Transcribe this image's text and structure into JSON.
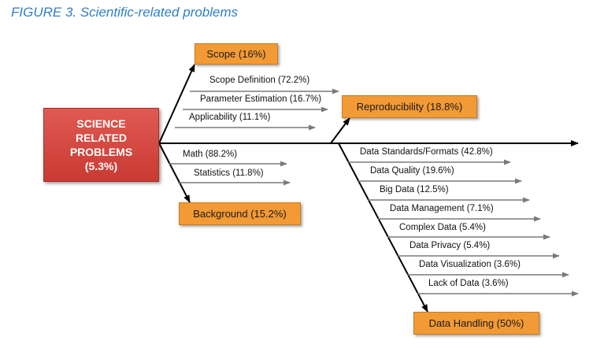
{
  "figure_title": "FIGURE 3. Scientific-related problems",
  "main": {
    "line1": "SCIENCE",
    "line2": "RELATED",
    "line3": "PROBLEMS",
    "line4": "(5.3%)",
    "color": "#c93a33"
  },
  "accent_color": "#f29a35",
  "categories": {
    "scope": {
      "label": "Scope (16%)",
      "items": [
        "Scope Definition (72.2%)",
        "Parameter Estimation (16.7%)",
        "Applicability (11.1%)"
      ]
    },
    "background": {
      "label": "Background (15.2%)",
      "items": [
        "Math (88.2%)",
        "Statistics (11.8%)"
      ]
    },
    "reproducibility": {
      "label": "Reproducibility (18.8%)",
      "items": []
    },
    "data_handling": {
      "label": "Data Handling (50%)",
      "items": [
        "Data Standards/Formats (42.8%)",
        "Data Quality (19.6%)",
        "Big Data (12.5%)",
        "Data Management (7.1%)",
        "Complex Data (5.4%)",
        "Data Privacy (5.4%)",
        "Data Visualization (3.6%)",
        "Lack of Data (3.6%)"
      ]
    }
  }
}
